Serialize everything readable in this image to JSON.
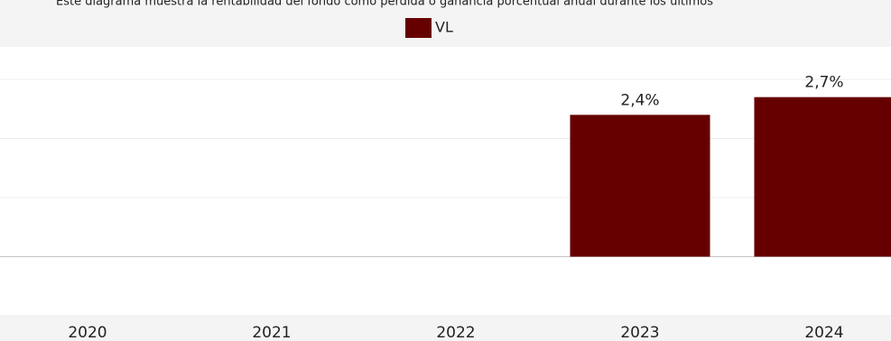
{
  "chart_data": {
    "type": "bar",
    "title": "Este diagrama muestra la rentabilidad del fondo como pérdida o ganancia porcentual anual durante los últimos",
    "legend": "VL",
    "categories": [
      "2020",
      "2021",
      "2022",
      "2023",
      "2024"
    ],
    "values": [
      null,
      null,
      null,
      2.4,
      2.7
    ],
    "value_labels": [
      null,
      null,
      null,
      "2,4%",
      "2,7%"
    ],
    "color": "#660000",
    "ylim": [
      -1,
      3.55
    ],
    "yticks": [
      -1,
      0,
      1,
      2,
      3
    ],
    "grid": true
  }
}
